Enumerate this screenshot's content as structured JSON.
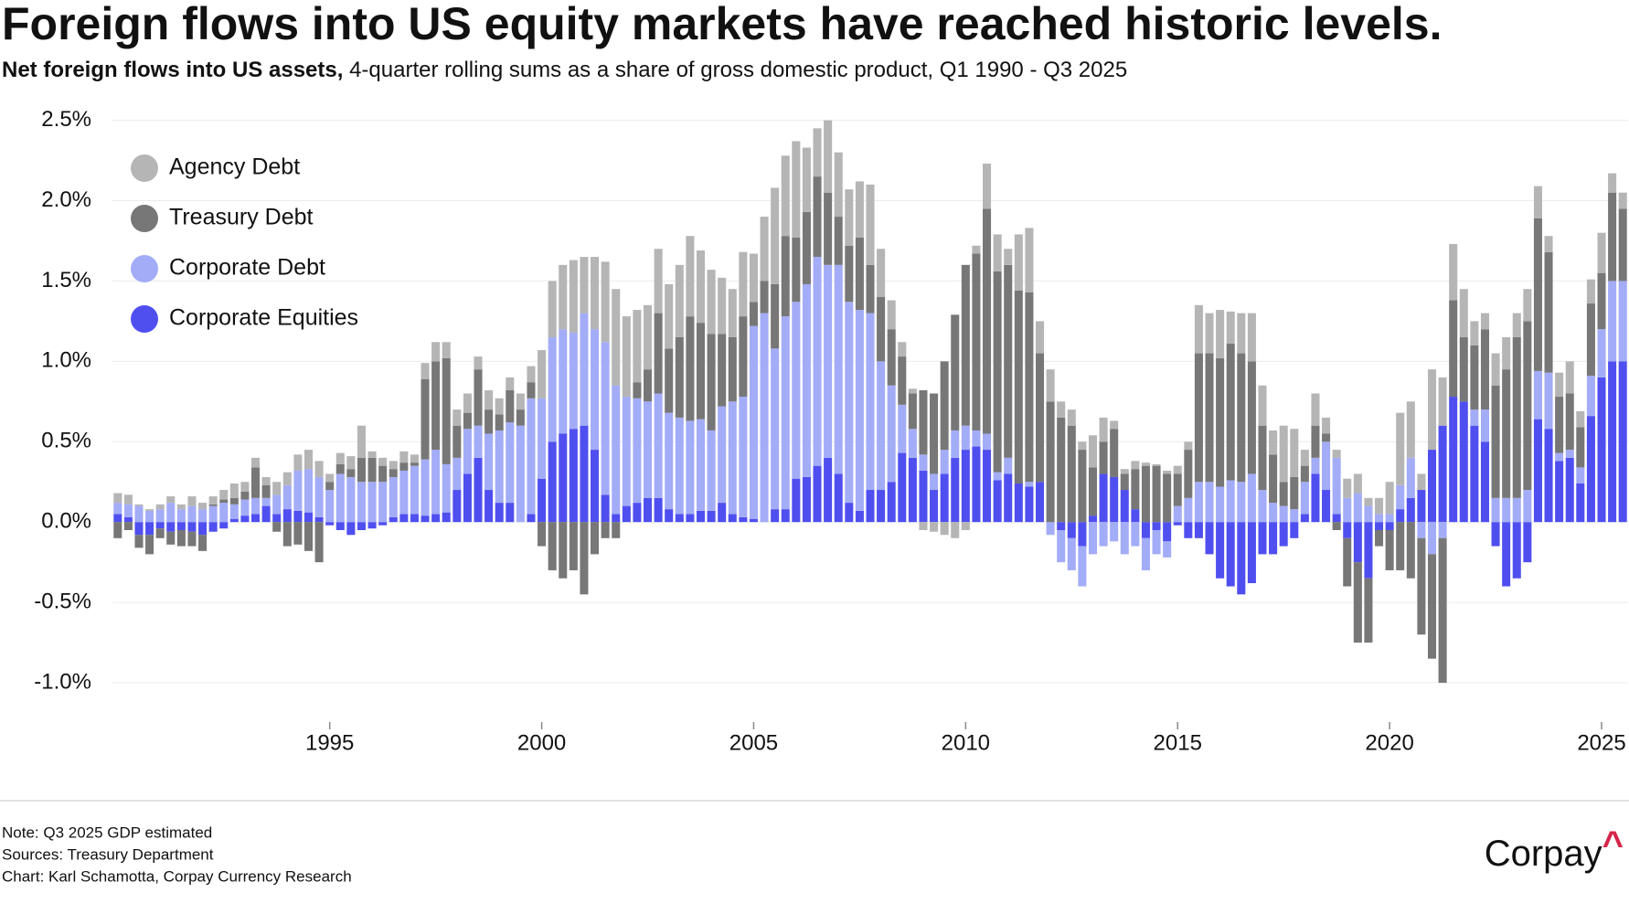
{
  "chart_data": {
    "type": "stacked_bar",
    "title": "Foreign flows into US equity markets have reached historic levels.",
    "subtitle_lead": "Net foreign flows into US assets,",
    "subtitle": "4-quarter rolling sums as a share of gross domestic product, Q1 1990 - Q3 2025",
    "notes": [
      "Note: Q3 2025 GDP estimated",
      "Sources: Treasury Department",
      "Chart: Karl Schamotta, Corpay Currency Research"
    ],
    "logo": "Corpay",
    "logo_mark": "^",
    "x": [
      1990,
      1990.25,
      1990.5,
      1990.75,
      1991,
      1991.25,
      1991.5,
      1991.75,
      1992,
      1992.25,
      1992.5,
      1992.75,
      1993,
      1993.25,
      1993.5,
      1993.75,
      1994,
      1994.25,
      1994.5,
      1994.75,
      1995,
      1995.25,
      1995.5,
      1995.75,
      1996,
      1996.25,
      1996.5,
      1996.75,
      1997,
      1997.25,
      1997.5,
      1997.75,
      1998,
      1998.25,
      1998.5,
      1998.75,
      1999,
      1999.25,
      1999.5,
      1999.75,
      2000,
      2000.25,
      2000.5,
      2000.75,
      2001,
      2001.25,
      2001.5,
      2001.75,
      2002,
      2002.25,
      2002.5,
      2002.75,
      2003,
      2003.25,
      2003.5,
      2003.75,
      2004,
      2004.25,
      2004.5,
      2004.75,
      2005,
      2005.25,
      2005.5,
      2005.75,
      2006,
      2006.25,
      2006.5,
      2006.75,
      2007,
      2007.25,
      2007.5,
      2007.75,
      2008,
      2008.25,
      2008.5,
      2008.75,
      2009,
      2009.25,
      2009.5,
      2009.75,
      2010,
      2010.25,
      2010.5,
      2010.75,
      2011,
      2011.25,
      2011.5,
      2011.75,
      2012,
      2012.25,
      2012.5,
      2012.75,
      2013,
      2013.25,
      2013.5,
      2013.75,
      2014,
      2014.25,
      2014.5,
      2014.75,
      2015,
      2015.25,
      2015.5,
      2015.75,
      2016,
      2016.25,
      2016.5,
      2016.75,
      2017,
      2017.25,
      2017.5,
      2017.75,
      2018,
      2018.25,
      2018.5,
      2018.75,
      2019,
      2019.25,
      2019.5,
      2019.75,
      2020,
      2020.25,
      2020.5,
      2020.75,
      2021,
      2021.25,
      2021.5,
      2021.75,
      2022,
      2022.25,
      2022.5,
      2022.75,
      2023,
      2023.25,
      2023.5,
      2023.75,
      2024,
      2024.25,
      2024.5,
      2024.75,
      2025,
      2025.25,
      2025.5
    ],
    "series": [
      {
        "name": "Agency Debt",
        "color": "#b5b5b5",
        "values": [
          0.06,
          0.06,
          0.01,
          0.01,
          0.03,
          0.04,
          0.03,
          0.06,
          0.04,
          0.05,
          0.06,
          0.09,
          0.06,
          0.06,
          0.05,
          0.08,
          0.08,
          0.1,
          0.12,
          0.1,
          0.05,
          0.07,
          0.08,
          0.2,
          0.04,
          0.05,
          0.05,
          0.07,
          0.05,
          0.1,
          0.12,
          0.1,
          0.1,
          0.12,
          0.08,
          0.12,
          0.1,
          0.08,
          0.1,
          0.1,
          0.3,
          0.35,
          0.4,
          0.45,
          0.35,
          0.45,
          0.5,
          0.6,
          0.5,
          0.45,
          0.4,
          0.4,
          0.4,
          0.45,
          0.5,
          0.45,
          0.4,
          0.35,
          0.3,
          0.4,
          0.3,
          0.4,
          0.6,
          0.5,
          0.6,
          0.4,
          0.3,
          0.45,
          0.4,
          0.35,
          0.35,
          0.5,
          0.3,
          0.18,
          0.09,
          0.03,
          -0.05,
          -0.06,
          -0.08,
          -0.1,
          -0.05,
          0.05,
          0.28,
          0.23,
          0.1,
          0.35,
          0.4,
          0.2,
          0.2,
          0.1,
          0.1,
          0.05,
          0.2,
          0.15,
          0.05,
          0.03,
          0.05,
          0.02,
          0.01,
          0.02,
          0.05,
          0.05,
          0.3,
          0.25,
          0.3,
          0.2,
          0.25,
          0.3,
          0.25,
          0.15,
          0.35,
          0.3,
          0.1,
          0.2,
          0.1,
          0.05,
          0.12,
          0.12,
          0.05,
          0.1,
          0.2,
          0.45,
          0.35,
          0.1,
          0.5,
          0.3,
          0.35,
          0.3,
          0.15,
          0.1,
          0.2,
          0.2,
          0.15,
          0.2,
          0.2,
          0.1,
          0.15,
          0.2,
          0.1,
          0.15,
          0.25,
          0.12,
          0.1
        ]
      },
      {
        "name": "Treasury Debt",
        "color": "#777777",
        "values": [
          -0.1,
          -0.05,
          -0.08,
          -0.12,
          -0.06,
          -0.08,
          -0.1,
          -0.09,
          -0.1,
          0.01,
          0.02,
          0.04,
          0.05,
          0.19,
          0.08,
          -0.06,
          -0.15,
          -0.14,
          -0.18,
          -0.25,
          0.05,
          0.06,
          0.05,
          0.15,
          0.15,
          0.1,
          0.05,
          0.05,
          0.02,
          0.5,
          0.55,
          0.66,
          0.2,
          0.1,
          0.35,
          0.15,
          0.1,
          0.2,
          0.1,
          0.1,
          -0.15,
          -0.3,
          -0.35,
          -0.3,
          -0.45,
          -0.2,
          -0.1,
          -0.1,
          0.0,
          0.1,
          0.2,
          0.5,
          0.4,
          0.5,
          0.65,
          0.6,
          0.6,
          0.45,
          0.4,
          0.5,
          0.15,
          0.2,
          0.4,
          0.5,
          0.4,
          0.45,
          0.5,
          0.45,
          0.3,
          0.35,
          0.45,
          0.3,
          0.4,
          0.35,
          0.3,
          0.22,
          0.4,
          0.5,
          0.55,
          0.72,
          1.0,
          1.1,
          1.4,
          1.25,
          1.2,
          1.2,
          1.18,
          0.8,
          0.75,
          0.65,
          0.6,
          0.45,
          0.3,
          0.2,
          0.3,
          0.1,
          0.25,
          0.35,
          0.35,
          0.3,
          0.2,
          0.3,
          0.8,
          0.8,
          0.8,
          0.85,
          0.8,
          0.7,
          0.4,
          0.3,
          0.15,
          0.2,
          0.1,
          0.2,
          0.05,
          -0.05,
          -0.3,
          -0.5,
          -0.4,
          -0.1,
          -0.25,
          -0.3,
          -0.35,
          -0.6,
          -0.65,
          -0.9,
          0.6,
          0.4,
          0.4,
          0.5,
          0.7,
          0.8,
          1.0,
          1.05,
          0.95,
          0.75,
          0.35,
          0.35,
          0.25,
          0.45,
          0.35,
          0.55,
          0.45
        ]
      },
      {
        "name": "Corporate Debt",
        "color": "#a3acf7",
        "values": [
          0.07,
          0.08,
          0.1,
          0.07,
          0.08,
          0.12,
          0.08,
          0.1,
          0.08,
          0.1,
          0.12,
          0.09,
          0.1,
          0.1,
          0.05,
          0.12,
          0.15,
          0.25,
          0.27,
          0.25,
          0.2,
          0.3,
          0.28,
          0.25,
          0.25,
          0.25,
          0.25,
          0.27,
          0.3,
          0.35,
          0.4,
          0.3,
          0.2,
          0.28,
          0.2,
          0.35,
          0.45,
          0.5,
          0.6,
          0.72,
          0.5,
          0.65,
          0.65,
          0.6,
          0.7,
          0.75,
          0.95,
          0.8,
          0.68,
          0.65,
          0.6,
          0.65,
          0.6,
          0.6,
          0.58,
          0.57,
          0.5,
          0.6,
          0.7,
          0.75,
          1.2,
          1.3,
          1.0,
          1.2,
          1.1,
          1.2,
          1.3,
          1.2,
          1.3,
          1.25,
          1.25,
          1.1,
          0.8,
          0.6,
          0.3,
          0.18,
          0.1,
          0.1,
          0.15,
          0.17,
          0.15,
          0.1,
          0.1,
          0.05,
          0.1,
          0.0,
          0.03,
          0.0,
          -0.08,
          -0.2,
          -0.2,
          -0.25,
          -0.2,
          -0.15,
          -0.12,
          -0.2,
          -0.15,
          -0.2,
          -0.15,
          -0.1,
          0.1,
          0.15,
          0.25,
          0.25,
          0.22,
          0.26,
          0.25,
          0.3,
          0.2,
          0.12,
          0.1,
          0.08,
          0.2,
          0.1,
          0.3,
          0.35,
          0.15,
          0.18,
          0.1,
          0.05,
          0.05,
          0.15,
          0.25,
          -0.1,
          -0.2,
          -0.1,
          0.0,
          0.0,
          0.1,
          0.2,
          0.15,
          0.15,
          0.15,
          0.2,
          0.3,
          0.35,
          0.05,
          0.05,
          0.1,
          0.25,
          0.3,
          0.5,
          0.5
        ]
      },
      {
        "name": "Corporate Equities",
        "color": "#4f4ff0",
        "values": [
          0.05,
          0.03,
          -0.08,
          -0.08,
          -0.04,
          -0.06,
          -0.05,
          -0.06,
          -0.08,
          -0.06,
          -0.04,
          0.02,
          0.04,
          0.05,
          0.1,
          0.05,
          0.08,
          0.07,
          0.06,
          0.03,
          -0.02,
          -0.05,
          -0.08,
          -0.05,
          -0.04,
          -0.02,
          0.03,
          0.05,
          0.05,
          0.04,
          0.05,
          0.06,
          0.2,
          0.3,
          0.4,
          0.2,
          0.12,
          0.12,
          0.0,
          0.05,
          0.27,
          0.5,
          0.55,
          0.58,
          0.6,
          0.45,
          0.17,
          0.05,
          0.1,
          0.12,
          0.15,
          0.15,
          0.08,
          0.05,
          0.05,
          0.07,
          0.07,
          0.12,
          0.05,
          0.03,
          0.02,
          0.0,
          0.08,
          0.08,
          0.27,
          0.28,
          0.35,
          0.4,
          0.3,
          0.12,
          0.07,
          0.2,
          0.2,
          0.25,
          0.43,
          0.4,
          0.32,
          0.2,
          0.3,
          0.4,
          0.45,
          0.47,
          0.45,
          0.26,
          0.3,
          0.24,
          0.22,
          0.25,
          0.0,
          -0.05,
          -0.1,
          -0.15,
          0.04,
          0.3,
          0.28,
          0.2,
          0.08,
          -0.1,
          -0.05,
          -0.12,
          -0.02,
          -0.1,
          -0.1,
          -0.2,
          -0.35,
          -0.4,
          -0.45,
          -0.38,
          -0.2,
          -0.2,
          -0.15,
          -0.1,
          0.05,
          0.3,
          0.2,
          0.05,
          -0.1,
          -0.25,
          -0.35,
          -0.05,
          -0.05,
          0.08,
          0.15,
          0.2,
          0.45,
          0.6,
          0.78,
          0.75,
          0.6,
          0.5,
          -0.15,
          -0.4,
          -0.35,
          -0.25,
          0.64,
          0.58,
          0.38,
          0.4,
          0.24,
          0.66,
          0.9,
          1.0,
          1.0
        ]
      }
    ],
    "xlim": [
      1989.875,
      2025.625
    ],
    "xticks": [
      1995,
      2000,
      2005,
      2010,
      2015,
      2020,
      2025
    ],
    "ylim": [
      -1.25,
      2.6
    ],
    "yticks": [
      {
        "value": -1.0,
        "label": "-1.0%"
      },
      {
        "value": -0.5,
        "label": "-0.5%"
      },
      {
        "value": 0,
        "label": "0.0%"
      },
      {
        "value": 0.5,
        "label": "0.5%"
      },
      {
        "value": 1.0,
        "label": "1.0%"
      },
      {
        "value": 1.5,
        "label": "1.5%"
      },
      {
        "value": 2.0,
        "label": "2.0%"
      },
      {
        "value": 2.5,
        "label": "2.5%"
      }
    ],
    "grid": true,
    "legend": "upper left"
  }
}
